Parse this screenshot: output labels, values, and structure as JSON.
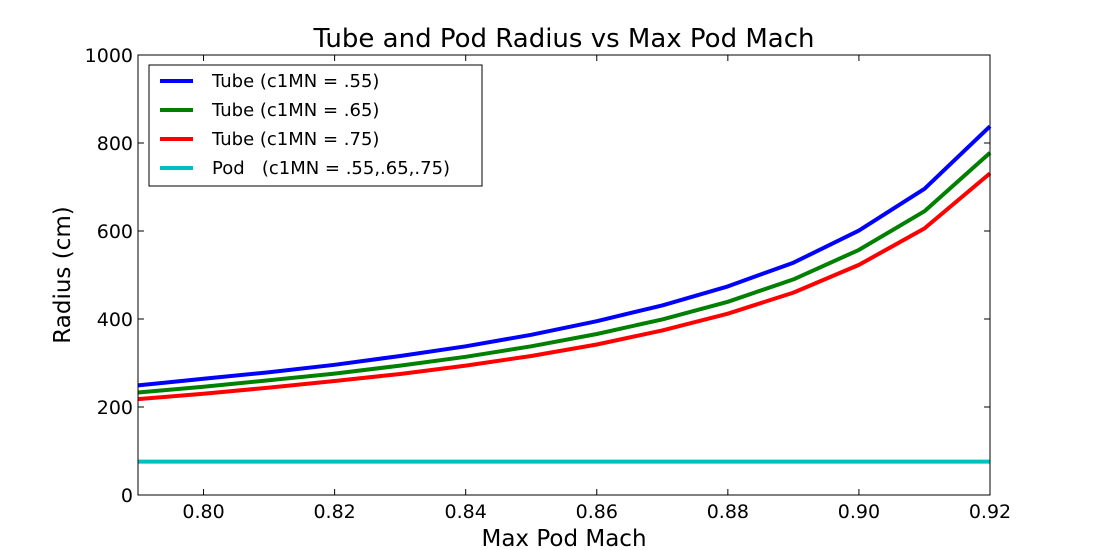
{
  "chart_data": {
    "type": "line",
    "title": "Tube and Pod Radius vs Max Pod Mach",
    "xlabel": "Max Pod Mach",
    "ylabel": "Radius (cm)",
    "xlim": [
      0.79,
      0.92
    ],
    "ylim": [
      0,
      1000
    ],
    "xticks": [
      "0.80",
      "0.82",
      "0.84",
      "0.86",
      "0.88",
      "0.90",
      "0.92"
    ],
    "yticks": [
      "0",
      "200",
      "400",
      "600",
      "800",
      "1000"
    ],
    "grid": false,
    "legend_position": "top-left",
    "x": [
      0.79,
      0.8,
      0.81,
      0.82,
      0.83,
      0.84,
      0.85,
      0.86,
      0.87,
      0.88,
      0.89,
      0.9,
      0.91,
      0.92
    ],
    "series": [
      {
        "name": "Tube (c1MN = .55)",
        "color": "#0000ff",
        "values": [
          249,
          264,
          279,
          296,
          316,
          338,
          364,
          395,
          431,
          474,
          528,
          601,
          696,
          838
        ]
      },
      {
        "name": "Tube (c1MN = .65)",
        "color": "#008000",
        "values": [
          233,
          246,
          261,
          276,
          294,
          314,
          338,
          366,
          399,
          439,
          490,
          557,
          645,
          778
        ]
      },
      {
        "name": "Tube (c1MN = .75)",
        "color": "#ff0000",
        "values": [
          218,
          230,
          244,
          259,
          275,
          294,
          316,
          342,
          374,
          412,
          460,
          523,
          606,
          731
        ]
      },
      {
        "name": "Pod   (c1MN = .55,.65,.75)",
        "color": "#00bfbf",
        "values": [
          76,
          76,
          76,
          76,
          76,
          76,
          76,
          76,
          76,
          76,
          76,
          76,
          76,
          76
        ]
      }
    ]
  }
}
